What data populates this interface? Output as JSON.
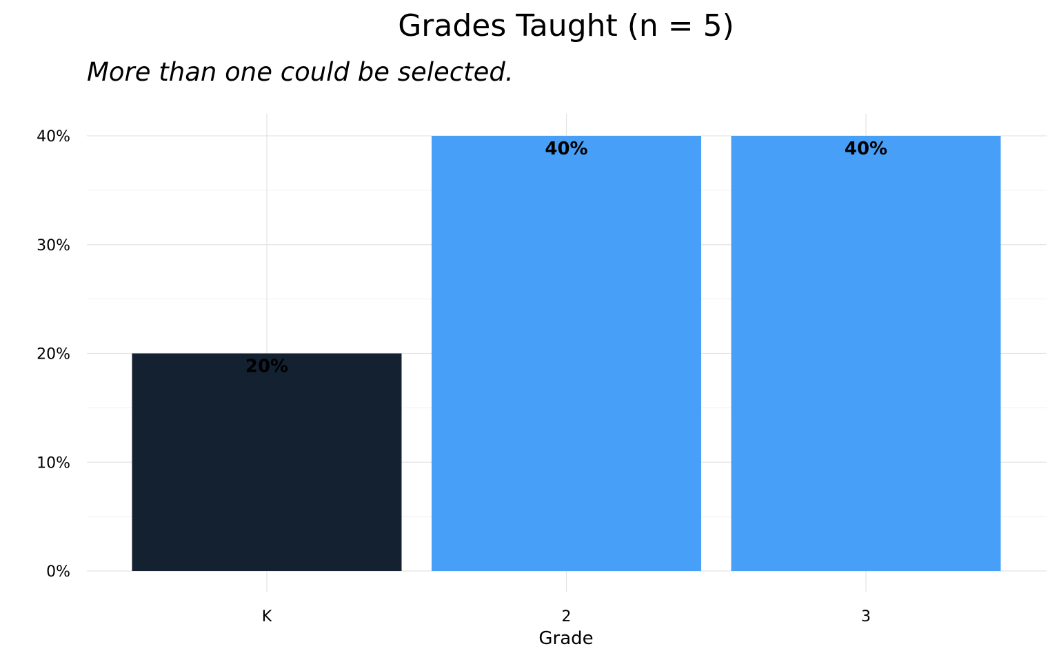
{
  "chart_data": {
    "type": "bar",
    "title": "Grades Taught (n = 5)",
    "subtitle": "More than one could be selected.",
    "xlabel": "Grade",
    "ylabel": "",
    "categories": [
      "K",
      "2",
      "3"
    ],
    "values": [
      20,
      40,
      40
    ],
    "value_labels": [
      "20%",
      "40%",
      "40%"
    ],
    "ylim": [
      0,
      40
    ],
    "yticks": [
      0,
      10,
      20,
      30,
      40
    ],
    "ytick_labels": [
      "0%",
      "10%",
      "20%",
      "30%",
      "40%"
    ],
    "bar_colors": [
      "#132131",
      "#489ff8",
      "#489ff8"
    ],
    "grid": true,
    "grid_color": "#e3e3e3",
    "legend": "none"
  }
}
